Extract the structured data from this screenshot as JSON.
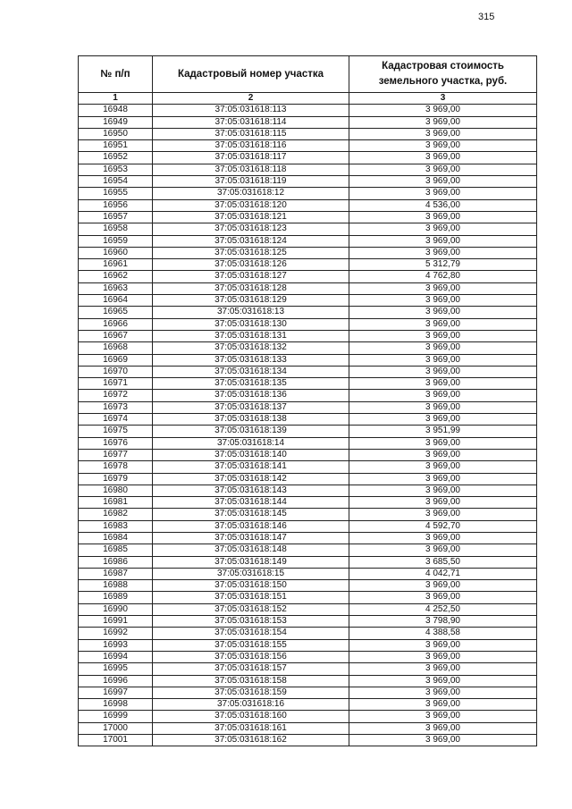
{
  "page_number": "315",
  "table": {
    "header": [
      "№ п/п",
      "Кадастровый номер участка",
      "Кадастровая стоимость земельного участка, руб."
    ],
    "column_numbers": [
      "1",
      "2",
      "3"
    ],
    "rows": [
      [
        "16948",
        "37:05:031618:113",
        "3 969,00"
      ],
      [
        "16949",
        "37:05:031618:114",
        "3 969,00"
      ],
      [
        "16950",
        "37:05:031618:115",
        "3 969,00"
      ],
      [
        "16951",
        "37:05:031618:116",
        "3 969,00"
      ],
      [
        "16952",
        "37:05:031618:117",
        "3 969,00"
      ],
      [
        "16953",
        "37:05:031618:118",
        "3 969,00"
      ],
      [
        "16954",
        "37:05:031618:119",
        "3 969,00"
      ],
      [
        "16955",
        "37:05:031618:12",
        "3 969,00"
      ],
      [
        "16956",
        "37:05:031618:120",
        "4 536,00"
      ],
      [
        "16957",
        "37:05:031618:121",
        "3 969,00"
      ],
      [
        "16958",
        "37:05:031618:123",
        "3 969,00"
      ],
      [
        "16959",
        "37:05:031618:124",
        "3 969,00"
      ],
      [
        "16960",
        "37:05:031618:125",
        "3 969,00"
      ],
      [
        "16961",
        "37:05:031618:126",
        "5 312,79"
      ],
      [
        "16962",
        "37:05:031618:127",
        "4 762,80"
      ],
      [
        "16963",
        "37:05:031618:128",
        "3 969,00"
      ],
      [
        "16964",
        "37:05:031618:129",
        "3 969,00"
      ],
      [
        "16965",
        "37:05:031618:13",
        "3 969,00"
      ],
      [
        "16966",
        "37:05:031618:130",
        "3 969,00"
      ],
      [
        "16967",
        "37:05:031618:131",
        "3 969,00"
      ],
      [
        "16968",
        "37:05:031618:132",
        "3 969,00"
      ],
      [
        "16969",
        "37:05:031618:133",
        "3 969,00"
      ],
      [
        "16970",
        "37:05:031618:134",
        "3 969,00"
      ],
      [
        "16971",
        "37:05:031618:135",
        "3 969,00"
      ],
      [
        "16972",
        "37:05:031618:136",
        "3 969,00"
      ],
      [
        "16973",
        "37:05:031618:137",
        "3 969,00"
      ],
      [
        "16974",
        "37:05:031618:138",
        "3 969,00"
      ],
      [
        "16975",
        "37:05:031618:139",
        "3 951,99"
      ],
      [
        "16976",
        "37:05:031618:14",
        "3 969,00"
      ],
      [
        "16977",
        "37:05:031618:140",
        "3 969,00"
      ],
      [
        "16978",
        "37:05:031618:141",
        "3 969,00"
      ],
      [
        "16979",
        "37:05:031618:142",
        "3 969,00"
      ],
      [
        "16980",
        "37:05:031618:143",
        "3 969,00"
      ],
      [
        "16981",
        "37:05:031618:144",
        "3 969,00"
      ],
      [
        "16982",
        "37:05:031618:145",
        "3 969,00"
      ],
      [
        "16983",
        "37:05:031618:146",
        "4 592,70"
      ],
      [
        "16984",
        "37:05:031618:147",
        "3 969,00"
      ],
      [
        "16985",
        "37:05:031618:148",
        "3 969,00"
      ],
      [
        "16986",
        "37:05:031618:149",
        "3 685,50"
      ],
      [
        "16987",
        "37:05:031618:15",
        "4 042,71"
      ],
      [
        "16988",
        "37:05:031618:150",
        "3 969,00"
      ],
      [
        "16989",
        "37:05:031618:151",
        "3 969,00"
      ],
      [
        "16990",
        "37:05:031618:152",
        "4 252,50"
      ],
      [
        "16991",
        "37:05:031618:153",
        "3 798,90"
      ],
      [
        "16992",
        "37:05:031618:154",
        "4 388,58"
      ],
      [
        "16993",
        "37:05:031618:155",
        "3 969,00"
      ],
      [
        "16994",
        "37:05:031618:156",
        "3 969,00"
      ],
      [
        "16995",
        "37:05:031618:157",
        "3 969,00"
      ],
      [
        "16996",
        "37:05:031618:158",
        "3 969,00"
      ],
      [
        "16997",
        "37:05:031618:159",
        "3 969,00"
      ],
      [
        "16998",
        "37:05:031618:16",
        "3 969,00"
      ],
      [
        "16999",
        "37:05:031618:160",
        "3 969,00"
      ],
      [
        "17000",
        "37:05:031618:161",
        "3 969,00"
      ],
      [
        "17001",
        "37:05:031618:162",
        "3 969,00"
      ]
    ]
  }
}
